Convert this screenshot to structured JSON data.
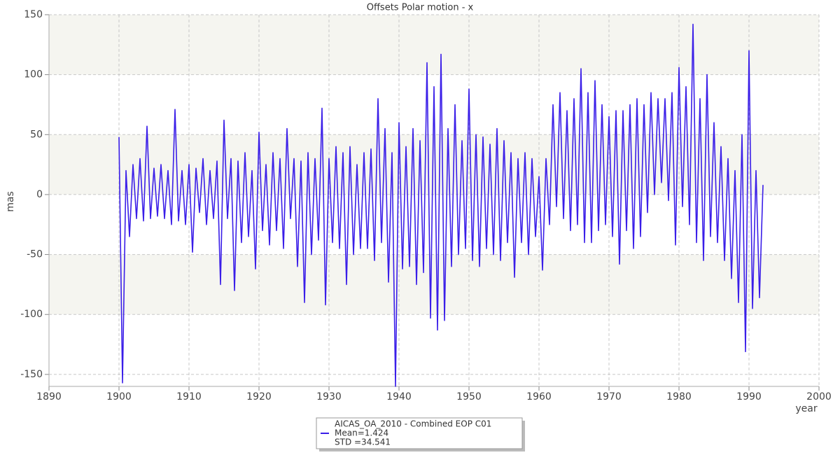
{
  "chart_data": {
    "type": "line",
    "title": "Offsets Polar motion - x",
    "xlabel": "year",
    "ylabel": "mas",
    "x": [
      1900,
      1900.5,
      1901,
      1901.5,
      1902,
      1902.5,
      1903,
      1903.5,
      1904,
      1904.5,
      1905,
      1905.5,
      1906,
      1906.5,
      1907,
      1907.5,
      1908,
      1908.5,
      1909,
      1909.5,
      1910,
      1910.5,
      1911,
      1911.5,
      1912,
      1912.5,
      1913,
      1913.5,
      1914,
      1914.5,
      1915,
      1915.5,
      1916,
      1916.5,
      1917,
      1917.5,
      1918,
      1918.5,
      1919,
      1919.5,
      1920,
      1920.5,
      1921,
      1921.5,
      1922,
      1922.5,
      1923,
      1923.5,
      1924,
      1924.5,
      1925,
      1925.5,
      1926,
      1926.5,
      1927,
      1927.5,
      1928,
      1928.5,
      1929,
      1929.5,
      1930,
      1930.5,
      1931,
      1931.5,
      1932,
      1932.5,
      1933,
      1933.5,
      1934,
      1934.5,
      1935,
      1935.5,
      1936,
      1936.5,
      1937,
      1937.5,
      1938,
      1938.5,
      1939,
      1939.5,
      1940,
      1940.5,
      1941,
      1941.5,
      1942,
      1942.5,
      1943,
      1943.5,
      1944,
      1944.5,
      1945,
      1945.5,
      1946,
      1946.5,
      1947,
      1947.5,
      1948,
      1948.5,
      1949,
      1949.5,
      1950,
      1950.5,
      1951,
      1951.5,
      1952,
      1952.5,
      1953,
      1953.5,
      1954,
      1954.5,
      1955,
      1955.5,
      1956,
      1956.5,
      1957,
      1957.5,
      1958,
      1958.5,
      1959,
      1959.5,
      1960,
      1960.5,
      1961,
      1961.5,
      1962,
      1962.5,
      1963,
      1963.5,
      1964,
      1964.5,
      1965,
      1965.5,
      1966,
      1966.5,
      1967,
      1967.5,
      1968,
      1968.5,
      1969,
      1969.5,
      1970,
      1970.5,
      1971,
      1971.5,
      1972,
      1972.5,
      1973,
      1973.5,
      1974,
      1974.5,
      1975,
      1975.5,
      1976,
      1976.5,
      1977,
      1977.5,
      1978,
      1978.5,
      1979,
      1979.5,
      1980,
      1980.5,
      1981,
      1981.5,
      1982,
      1982.5,
      1983,
      1983.5,
      1984,
      1984.5,
      1985,
      1985.5,
      1986,
      1986.5,
      1987,
      1987.5,
      1988,
      1988.5,
      1989,
      1989.5,
      1990,
      1990.5,
      1991,
      1991.5,
      1992
    ],
    "series": [
      {
        "name": "AICAS_OA_2010 - Combined EOP C01",
        "color": "#3a1ee8",
        "values": [
          48,
          -157,
          20,
          -35,
          25,
          -20,
          30,
          -22,
          57,
          -20,
          22,
          -18,
          25,
          -20,
          20,
          -25,
          71,
          -22,
          20,
          -25,
          25,
          -48,
          22,
          -15,
          30,
          -25,
          20,
          -20,
          28,
          -75,
          62,
          -20,
          30,
          -80,
          28,
          -40,
          35,
          -35,
          20,
          -62,
          52,
          -30,
          25,
          -42,
          35,
          -30,
          30,
          -45,
          55,
          -20,
          30,
          -60,
          28,
          -90,
          35,
          -50,
          30,
          -38,
          72,
          -92,
          30,
          -40,
          40,
          -45,
          35,
          -75,
          40,
          -50,
          25,
          -45,
          35,
          -45,
          38,
          -55,
          80,
          -40,
          55,
          -73,
          35,
          -160,
          60,
          -62,
          40,
          -60,
          55,
          -75,
          45,
          -65,
          110,
          -103,
          90,
          -113,
          117,
          -105,
          55,
          -60,
          75,
          -50,
          45,
          -45,
          88,
          -55,
          50,
          -60,
          48,
          -45,
          42,
          -50,
          55,
          -55,
          45,
          -40,
          35,
          -69,
          30,
          -40,
          35,
          -50,
          30,
          -35,
          15,
          -63,
          30,
          -25,
          75,
          -10,
          85,
          -20,
          70,
          -30,
          80,
          -25,
          105,
          -40,
          85,
          -40,
          95,
          -30,
          75,
          -25,
          65,
          -35,
          70,
          -58,
          70,
          -30,
          75,
          -45,
          80,
          -35,
          75,
          -15,
          85,
          0,
          80,
          10,
          80,
          -5,
          85,
          -42,
          106,
          -10,
          90,
          -25,
          142,
          -40,
          80,
          -55,
          100,
          -35,
          60,
          -40,
          40,
          -55,
          30,
          -70,
          20,
          -90,
          50,
          -131,
          120,
          -95,
          20,
          -86,
          8
        ]
      }
    ],
    "xlim": [
      1890,
      2000
    ],
    "ylim": [
      -160,
      150
    ],
    "xticks": [
      1890,
      1900,
      1910,
      1920,
      1930,
      1940,
      1950,
      1960,
      1970,
      1980,
      1990,
      2000
    ],
    "yticks": [
      -150,
      -100,
      -50,
      0,
      50,
      100,
      150
    ],
    "grid": true,
    "legend_position": "bottom",
    "annotations": [
      "Mean=1.424",
      "STD =34.541"
    ]
  }
}
